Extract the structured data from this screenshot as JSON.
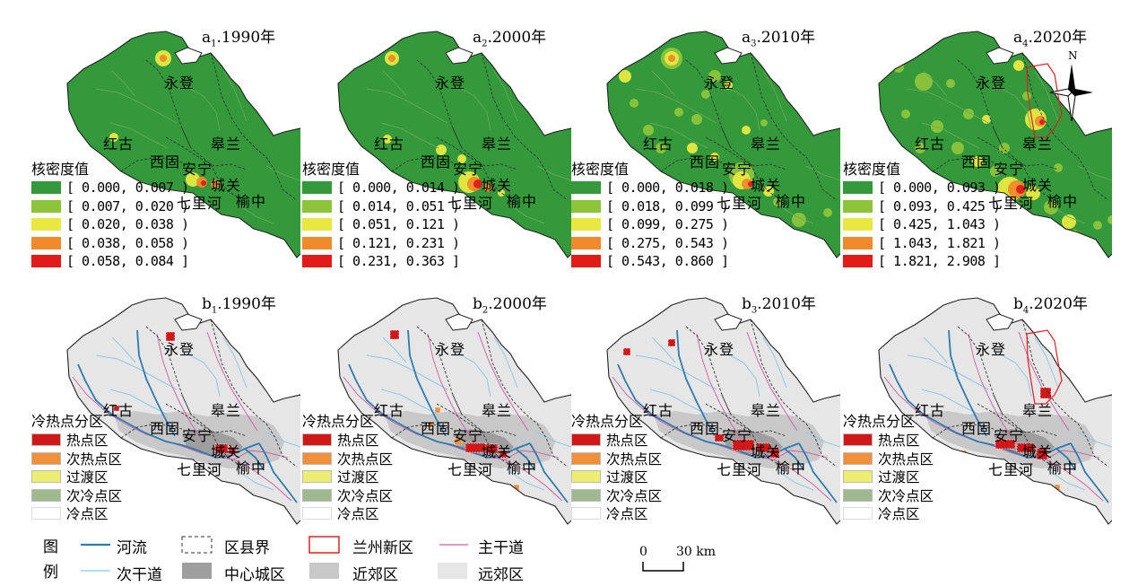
{
  "colors": {
    "density": [
      "#33993a",
      "#8cc43a",
      "#e8e840",
      "#f08a2a",
      "#e21a1a"
    ],
    "hotspot": [
      "#d01818",
      "#f0903a",
      "#eded70",
      "#a0b890",
      "#ffffff"
    ],
    "river": "#2d7bb0",
    "secondary_road": "#8ec8ec",
    "main_road": "#d05aa0",
    "new_district": "#e02020",
    "central_urban": "#9e9e9e",
    "near_suburb": "#c8c8c8",
    "far_suburb": "#e6e6e6"
  },
  "places": {
    "yongdeng": "永登",
    "honggu": "红古",
    "gaolan": "皋兰",
    "xigu": "西固",
    "anning": "安宁",
    "chengguan": "城关",
    "qilihe": "七里河",
    "yuzhong": "榆中"
  },
  "density_panels": [
    {
      "prefix": "a",
      "sub": "1",
      "year": ".1990年",
      "legend_title": "核密度值",
      "classes": [
        "[ 0.000, 0.007 )",
        "[ 0.007, 0.020 )",
        "[ 0.020, 0.038 )",
        "[ 0.038, 0.058 )",
        "[ 0.058, 0.084 ]"
      ]
    },
    {
      "prefix": "a",
      "sub": "2",
      "year": ".2000年",
      "legend_title": "核密度值",
      "classes": [
        "[ 0.000, 0.014 )",
        "[ 0.014, 0.051 )",
        "[ 0.051, 0.121 )",
        "[ 0.121, 0.231 )",
        "[ 0.231, 0.363 ]"
      ]
    },
    {
      "prefix": "a",
      "sub": "3",
      "year": ".2010年",
      "legend_title": "核密度值",
      "classes": [
        "[ 0.000, 0.018 )",
        "[ 0.018, 0.099 )",
        "[ 0.099, 0.275 )",
        "[ 0.275, 0.543 )",
        "[ 0.543, 0.860 ]"
      ]
    },
    {
      "prefix": "a",
      "sub": "4",
      "year": ".2020年",
      "legend_title": "核密度值",
      "classes": [
        "[ 0.000, 0.093 )",
        "[ 0.093, 0.425 )",
        "[ 0.425, 1.043 )",
        "[ 1.043, 1.821 )",
        "[ 1.821, 2.908 ]"
      ]
    }
  ],
  "hotspot_panels": [
    {
      "prefix": "b",
      "sub": "1",
      "year": ".1990年",
      "legend_title": "冷热点分区"
    },
    {
      "prefix": "b",
      "sub": "2",
      "year": ".2000年",
      "legend_title": "冷热点分区"
    },
    {
      "prefix": "b",
      "sub": "3",
      "year": ".2010年",
      "legend_title": "冷热点分区"
    },
    {
      "prefix": "b",
      "sub": "4",
      "year": ".2020年",
      "legend_title": "冷热点分区"
    }
  ],
  "hotspot_classes": [
    "热点区",
    "次热点区",
    "过渡区",
    "次冷点区",
    "冷点区"
  ],
  "north": "N",
  "bottom_legend": {
    "title_line1": "图",
    "title_line2": "例",
    "river": "河流",
    "county_boundary": "区县界",
    "new_district": "兰州新区",
    "main_road": "主干道",
    "secondary_road": "次干道",
    "central_urban": "中心城区",
    "near_suburb": "近郊区",
    "far_suburb": "远郊区"
  },
  "scale": {
    "zero": "0",
    "dist": "30 km"
  }
}
